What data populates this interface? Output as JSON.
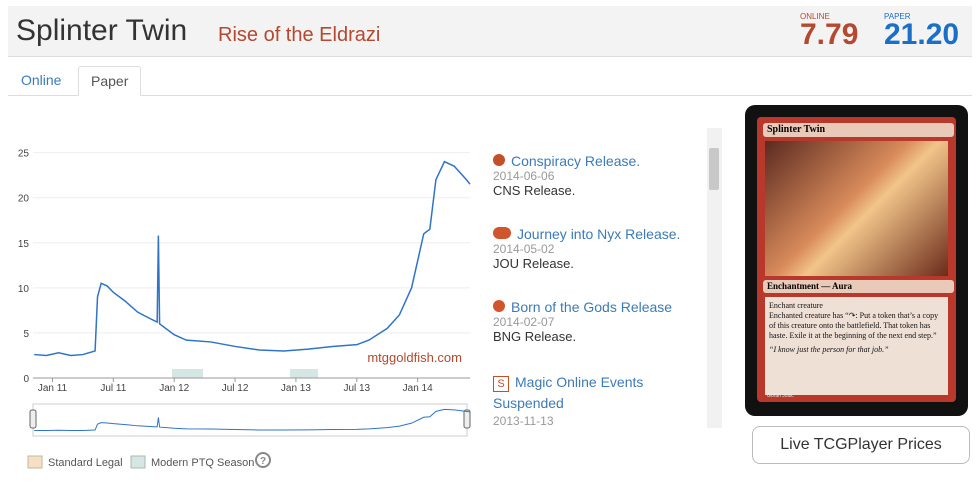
{
  "header": {
    "title": "Splinter Twin",
    "set": "Rise of the Eldrazi",
    "online_label": "ONLINE",
    "online_price": "7.79",
    "paper_label": "PAPER",
    "paper_price": "21.20"
  },
  "tabs": [
    "Online",
    "Paper"
  ],
  "chart": {
    "type": "line",
    "color": "#2f74c8",
    "grid": true,
    "watermark": "mtggoldfish.com",
    "x": [
      2010.85,
      2010.95,
      2011.05,
      2011.15,
      2011.25,
      2011.35,
      2011.37,
      2011.4,
      2011.45,
      2011.5,
      2011.6,
      2011.7,
      2011.8,
      2011.86,
      2011.87,
      2011.88,
      2012.0,
      2012.1,
      2012.3,
      2012.5,
      2012.7,
      2012.9,
      2013.1,
      2013.3,
      2013.5,
      2013.6,
      2013.75,
      2013.85,
      2013.95,
      2014.05,
      2014.1,
      2014.15,
      2014.22,
      2014.3,
      2014.4,
      2014.43
    ],
    "values": [
      2.6,
      2.5,
      2.8,
      2.5,
      2.6,
      3.0,
      9.0,
      10.5,
      10.2,
      9.5,
      8.5,
      7.3,
      6.6,
      6.2,
      15.8,
      6.0,
      4.8,
      4.2,
      4.0,
      3.5,
      3.1,
      3.0,
      3.2,
      3.5,
      3.7,
      4.2,
      5.5,
      7.0,
      10.0,
      16.0,
      16.5,
      22.0,
      24.0,
      23.5,
      22.0,
      21.5
    ],
    "xlim": [
      2010.84,
      2014.43
    ],
    "ylim": [
      0,
      26.4
    ],
    "yticks": [
      0,
      5,
      10,
      15,
      20,
      25
    ],
    "xticks": [
      {
        "value": 2011,
        "label": "Jan 11"
      },
      {
        "value": 2011.5,
        "label": "Jul 11"
      },
      {
        "value": 2012,
        "label": "Jan 12"
      },
      {
        "value": 2012.5,
        "label": "Jul 12"
      },
      {
        "value": 2013,
        "label": "Jan 13"
      },
      {
        "value": 2013.5,
        "label": "Jul 13"
      },
      {
        "value": 2014,
        "label": "Jan 14"
      }
    ]
  },
  "events": [
    {
      "title": "Conspiracy Release.",
      "date": "2014-06-06",
      "description": "CNS Release."
    },
    {
      "title": "Journey into Nyx Release.",
      "date": "2014-05-02",
      "description": "JOU Release."
    },
    {
      "title": "Born of the Gods Release",
      "date": "2014-02-07",
      "description": "BNG Release."
    },
    {
      "title": "Magic Online Events Suspended",
      "date": "2013-11-13"
    }
  ],
  "card": {
    "name": "Splinter Twin",
    "type_line": "Enchantment — Aura",
    "rules": [
      "Enchant creature",
      "Enchanted creature has “↷: Put a token that’s a copy of this creature onto the battlefield. That token has haste. Exile it at the beginning of the next end step.”"
    ],
    "flavor": "“I know just the person for that job.”",
    "artist": "Goran Josic"
  },
  "button": "Live TCGPlayer Prices",
  "legend": [
    "Standard Legal",
    "Modern PTQ Season"
  ]
}
